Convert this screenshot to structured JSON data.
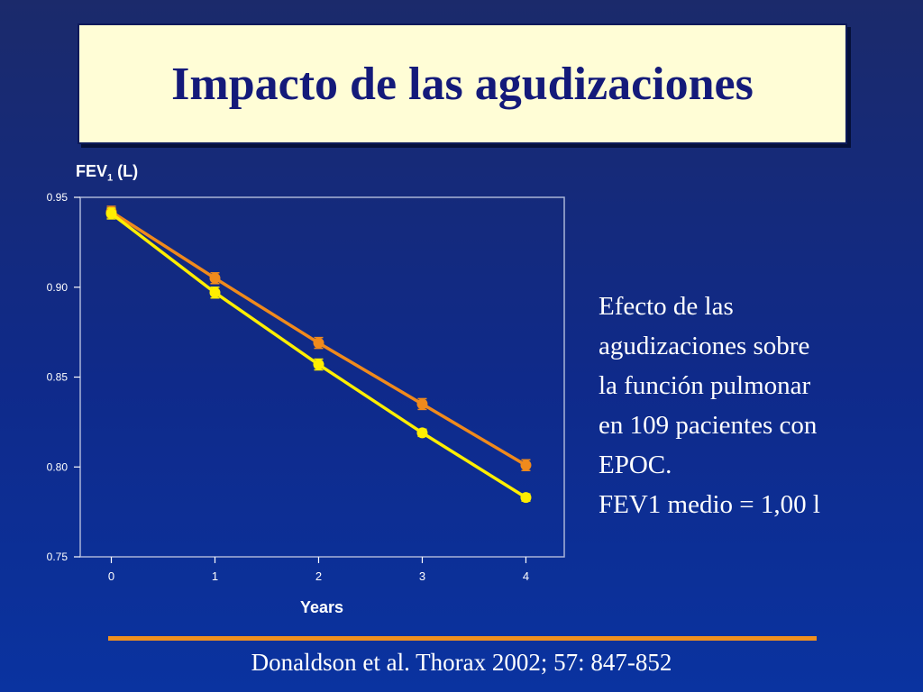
{
  "slide": {
    "title": "Impacto de las agudizaciones",
    "side_text": [
      "Efecto de las",
      "agudizaciones sobre",
      "la función pulmonar",
      "en 109 pacientes con",
      "EPOC.",
      "FEV1 medio = 1,00 l"
    ],
    "citation": "Donaldson et al. Thorax 2002; 57: 847-852"
  },
  "chart_data": {
    "type": "line",
    "ylabel_main": "FEV",
    "ylabel_sub": "1",
    "ylabel_unit": " (L)",
    "xlabel": "Years",
    "x": [
      0,
      1,
      2,
      3,
      4
    ],
    "xticks": [
      "0",
      "1",
      "2",
      "3",
      "4"
    ],
    "yticks": [
      "0.75",
      "0.80",
      "0.85",
      "0.90",
      "0.95"
    ],
    "ylim": [
      0.75,
      0.95
    ],
    "xlim": [
      -0.3,
      4.37
    ],
    "grid": false,
    "series": [
      {
        "color": "#f08a1c",
        "values": [
          0.942,
          0.905,
          0.869,
          0.835,
          0.801
        ],
        "err": [
          0.003,
          0.003,
          0.003,
          0.003,
          0.003
        ]
      },
      {
        "color": "#ffee00",
        "values": [
          0.941,
          0.897,
          0.857,
          0.819,
          0.783
        ],
        "err": [
          0.003,
          0.003,
          0.003,
          0.002,
          0.002
        ]
      }
    ]
  }
}
